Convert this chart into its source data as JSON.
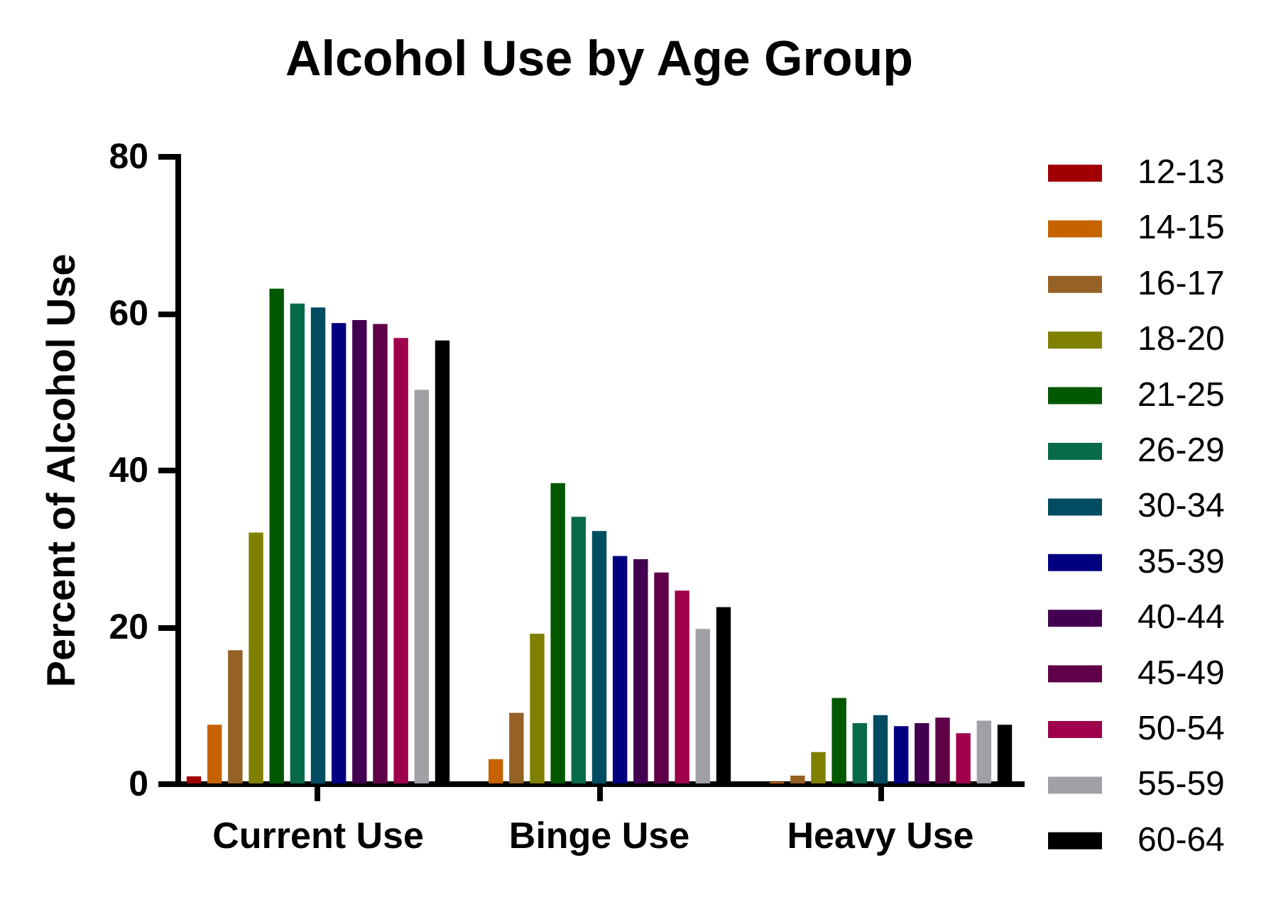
{
  "chart_data": {
    "type": "bar",
    "title": "Alcohol Use by Age Group",
    "ylabel": "Percent of Alcohol Use",
    "categories": [
      "Current Use",
      "Binge Use",
      "Heavy Use"
    ],
    "series": [
      {
        "name": "12-13",
        "color": "#a00000",
        "values": [
          0.9,
          0,
          0
        ]
      },
      {
        "name": "14-15",
        "color": "#c66300",
        "values": [
          7.5,
          3.1,
          0.2
        ]
      },
      {
        "name": "16-17",
        "color": "#956125",
        "values": [
          17.0,
          9.0,
          1.0
        ]
      },
      {
        "name": "18-20",
        "color": "#808000",
        "values": [
          32.0,
          19.1,
          4.0
        ]
      },
      {
        "name": "21-25",
        "color": "#005800",
        "values": [
          63.1,
          38.3,
          10.9
        ]
      },
      {
        "name": "26-29",
        "color": "#076a48",
        "values": [
          61.2,
          34.0,
          7.7
        ]
      },
      {
        "name": "30-34",
        "color": "#014c60",
        "values": [
          60.7,
          32.2,
          8.7
        ]
      },
      {
        "name": "35-39",
        "color": "#000080",
        "values": [
          58.7,
          29.0,
          7.3
        ]
      },
      {
        "name": "40-44",
        "color": "#440050",
        "values": [
          59.1,
          28.6,
          7.7
        ]
      },
      {
        "name": "45-49",
        "color": "#600049",
        "values": [
          58.6,
          26.9,
          8.4
        ]
      },
      {
        "name": "50-54",
        "color": "#9e004c",
        "values": [
          56.8,
          24.6,
          6.4
        ]
      },
      {
        "name": "55-59",
        "color": "#a1a0a4",
        "values": [
          50.2,
          19.7,
          8.0
        ]
      },
      {
        "name": "60-64",
        "color": "#000000",
        "values": [
          56.5,
          22.5,
          7.5
        ]
      }
    ],
    "ylim": [
      0,
      80
    ],
    "yticks": [
      0,
      20,
      40,
      60,
      80
    ],
    "grid": false,
    "legend": "right"
  }
}
